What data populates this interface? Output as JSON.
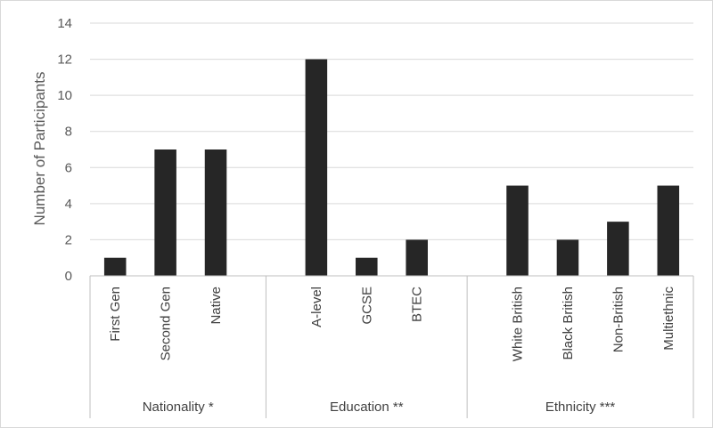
{
  "chart_data": {
    "type": "bar",
    "title": "",
    "ylabel": "Number of Participants",
    "xlabel": "",
    "ylim": [
      0,
      14
    ],
    "yticks": [
      0,
      2,
      4,
      6,
      8,
      10,
      12,
      14
    ],
    "grid": true,
    "bar_color": "#262626",
    "groups": [
      {
        "label": "Nationality *",
        "categories": [
          "First Gen",
          "Second Gen",
          "Native"
        ],
        "values": [
          1,
          7,
          7
        ]
      },
      {
        "label": "Education **",
        "categories": [
          "A-level",
          "GCSE",
          "BTEC"
        ],
        "values": [
          12,
          1,
          2
        ]
      },
      {
        "label": "Ethnicity ***",
        "categories": [
          "White British",
          "Black British",
          "Non-British",
          "Multiethnic"
        ],
        "values": [
          5,
          2,
          3,
          5
        ]
      }
    ]
  }
}
